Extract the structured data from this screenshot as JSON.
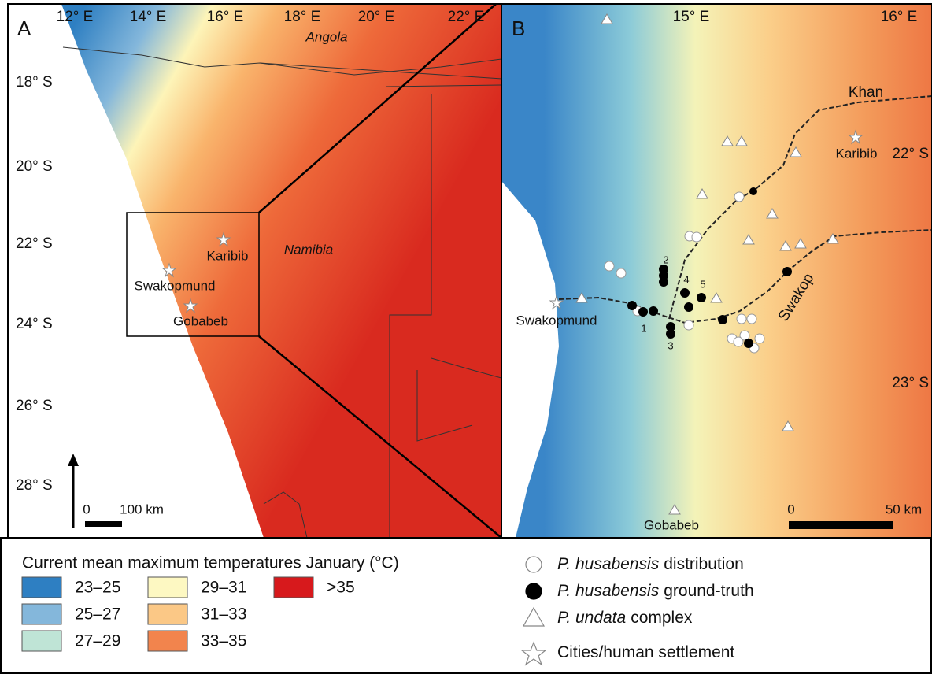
{
  "panel_a": {
    "label": "A",
    "lon_labels": [
      "12° E",
      "14° E",
      "16° E",
      "18° E",
      "20° E",
      "22° E"
    ],
    "lat_labels": [
      "18° S",
      "20° S",
      "22° S",
      "24° S",
      "26° S",
      "28° S"
    ],
    "countries": [
      "Angola",
      "Namibia"
    ],
    "cities": [
      "Karibib",
      "Swakopmund",
      "Gobabeb"
    ],
    "scale": [
      "0",
      "100 km"
    ]
  },
  "panel_b": {
    "label": "B",
    "lon_labels": [
      "15° E",
      "16° E"
    ],
    "lat_labels": [
      "22° S",
      "23° S"
    ],
    "rivers": [
      "Khan",
      "Swakop"
    ],
    "cities": [
      "Swakopmund",
      "Karibib",
      "Gobabeb"
    ],
    "site_numbers": [
      "1",
      "2",
      "3",
      "4",
      "5"
    ],
    "scale": [
      "0",
      "50 km"
    ]
  },
  "legend": {
    "title": "Current mean maximum temperatures January (°C)",
    "classes": [
      {
        "label": "23–25",
        "color": "#2e7fc2"
      },
      {
        "label": "25–27",
        "color": "#84b7db"
      },
      {
        "label": "27–29",
        "color": "#bfe4d6"
      },
      {
        "label": "29–31",
        "color": "#fdf8c2"
      },
      {
        "label": "31–33",
        "color": "#fbc886"
      },
      {
        "label": "33–35",
        "color": "#f2844d"
      },
      {
        "label": ">35",
        "color": "#d7191c"
      }
    ],
    "symbols": [
      {
        "italic": "P. husabensis",
        "text": "distribution"
      },
      {
        "italic": "P. husabensis",
        "text": "ground-truth"
      },
      {
        "italic": "P. undata",
        "text": "complex"
      },
      {
        "italic": "",
        "text": "Cities/human settlement"
      }
    ]
  }
}
